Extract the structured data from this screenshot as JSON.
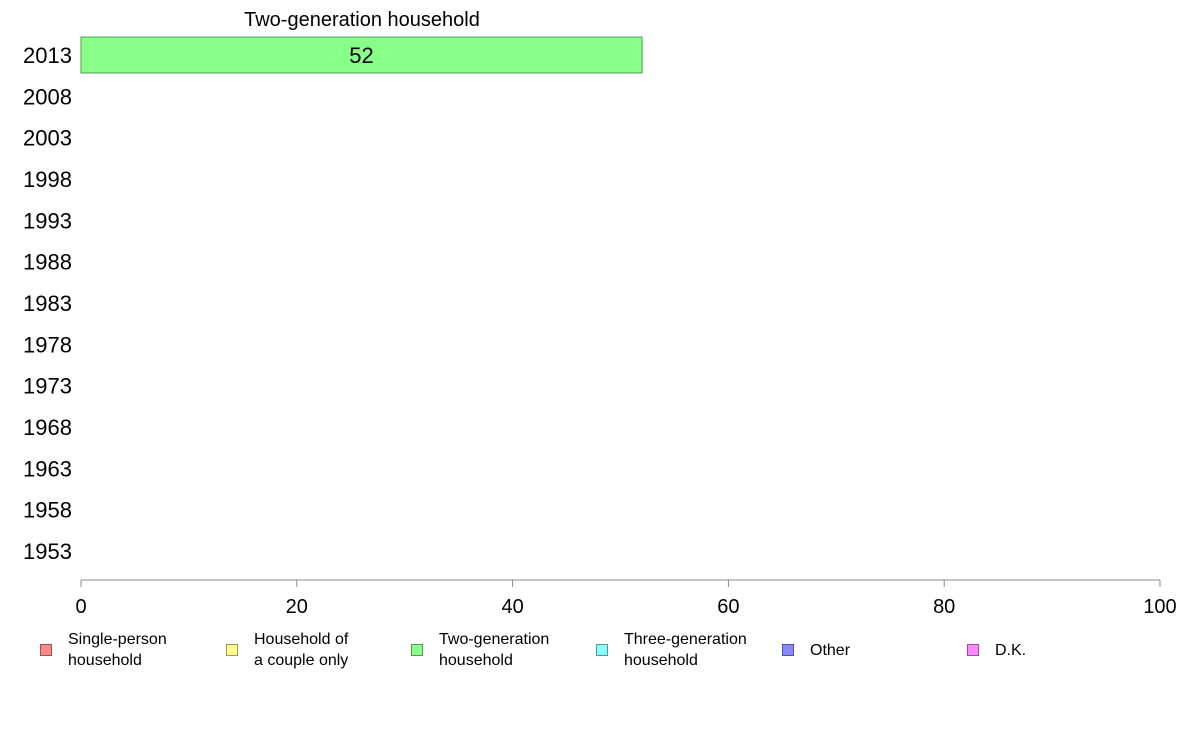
{
  "chart_data": {
    "type": "bar",
    "orientation": "horizontal",
    "title": "Two-generation household",
    "categories": [
      "2013",
      "2008",
      "2003",
      "1998",
      "1993",
      "1988",
      "1983",
      "1978",
      "1973",
      "1968",
      "1963",
      "1958",
      "1953"
    ],
    "series": [
      {
        "name": "Two-generation household",
        "color": "#88ff88",
        "values": [
          52,
          null,
          null,
          null,
          null,
          null,
          null,
          null,
          null,
          null,
          null,
          null,
          null
        ],
        "data_labels": [
          "52",
          "",
          "",
          "",
          "",
          "",
          "",
          "",
          "",
          "",
          "",
          "",
          ""
        ]
      }
    ],
    "xlim": [
      0,
      100
    ],
    "xticks": [
      "0",
      "20",
      "40",
      "60",
      "80",
      "100"
    ],
    "grid": false,
    "legend_position": "bottom"
  },
  "legend": {
    "items": [
      {
        "label": "Single-person\nhousehold",
        "color": "#ff8888"
      },
      {
        "label": "Household of\na couple only",
        "color": "#ffff88"
      },
      {
        "label": "Two-generation\nhousehold",
        "color": "#88ff88"
      },
      {
        "label": "Three-generation\nhousehold",
        "color": "#88ffff"
      },
      {
        "label": "Other",
        "color": "#8888ff"
      },
      {
        "label": "D.K.",
        "color": "#ff88ff"
      }
    ]
  }
}
